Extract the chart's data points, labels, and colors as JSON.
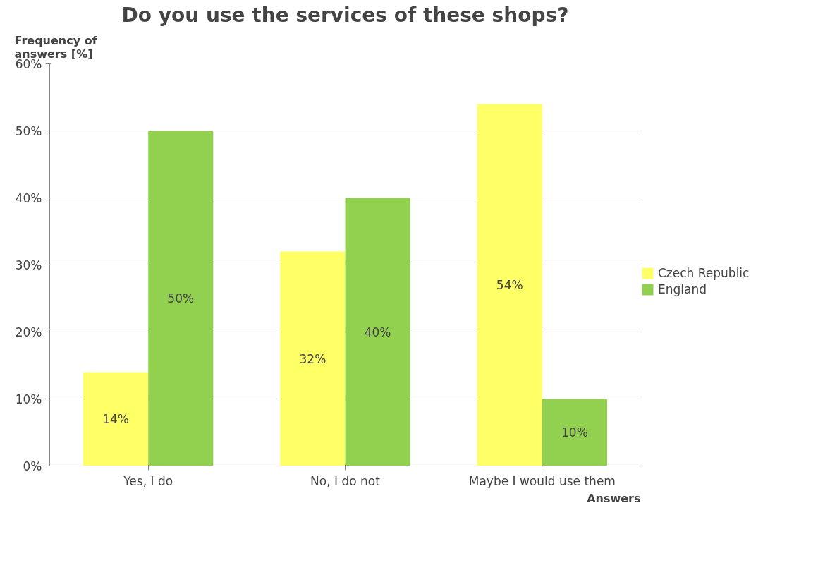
{
  "chart_data": {
    "type": "bar",
    "title": "Do you use the services of these shops?",
    "xlabel": "Answers",
    "ylabel": "Frequency of answers [%]",
    "categories": [
      "Yes, I do",
      "No, I do not",
      "Maybe I would use them"
    ],
    "series": [
      {
        "name": "Czech Republic",
        "color": "#ffff66",
        "values": [
          14,
          32,
          54
        ],
        "value_labels": [
          "14%",
          "32%",
          "54%"
        ]
      },
      {
        "name": "England",
        "color": "#92d050",
        "values": [
          50,
          40,
          10
        ],
        "value_labels": [
          "50%",
          "40%",
          "10%"
        ]
      }
    ],
    "ylim": [
      0,
      60
    ],
    "yticks": [
      {
        "value": 0,
        "label": "0%"
      },
      {
        "value": 10,
        "label": "10%"
      },
      {
        "value": 20,
        "label": "20%"
      },
      {
        "value": 30,
        "label": "30%"
      },
      {
        "value": 40,
        "label": "40%"
      },
      {
        "value": 50,
        "label": "50%"
      },
      {
        "value": 60,
        "label": "60%"
      }
    ],
    "grid": "y",
    "legend": "right"
  }
}
